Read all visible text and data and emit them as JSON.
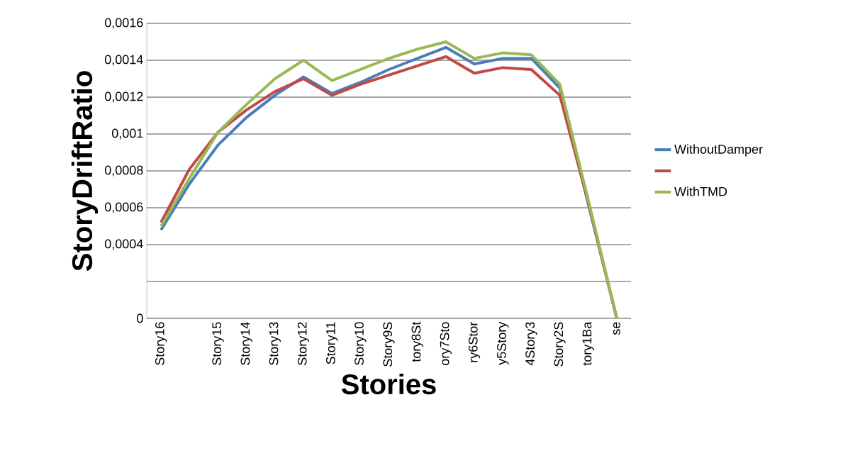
{
  "chart_data": {
    "type": "line",
    "xlabel": "Stories",
    "ylabel": "StoryDriftRatio",
    "categories": [
      "Story16",
      null,
      "Story15",
      "Story14",
      "Story13",
      "Story12",
      "Story11",
      "Story10",
      "Story9S",
      "tory8St",
      "ory7Sto",
      "ry6Stor",
      "y5Story",
      "4Story3",
      "Story2S",
      "tory1Ba",
      "se"
    ],
    "series": [
      {
        "name": "WithoutDamper",
        "color": "#4a7ebb",
        "values": [
          0.00048,
          0.00073,
          0.00094,
          0.00109,
          0.00121,
          0.00131,
          0.00122,
          0.00128,
          0.00135,
          0.00141,
          0.00147,
          0.00138,
          0.00141,
          0.00141,
          0.00125,
          0.00062,
          0
        ]
      },
      {
        "color": "#be4b48",
        "values": [
          0.00052,
          0.00081,
          0.00101,
          0.00113,
          0.00123,
          0.0013,
          0.00121,
          0.00127,
          0.00132,
          0.00137,
          0.00142,
          0.00133,
          0.00136,
          0.00135,
          0.00121,
          0.00063,
          0
        ]
      },
      {
        "name": "WithTMD",
        "color": "#98b954",
        "values": [
          0.0005,
          0.00076,
          0.00101,
          0.00116,
          0.0013,
          0.0014,
          0.00129,
          0.00135,
          0.00141,
          0.00146,
          0.0015,
          0.00141,
          0.00144,
          0.00143,
          0.00127,
          0.00064,
          0
        ]
      }
    ],
    "ylim": [
      0,
      0.0016
    ],
    "yticks": [
      0,
      {
        "value": 0.0002,
        "label": null
      },
      {
        "value": 0.0004,
        "label": "0,0004"
      },
      {
        "value": 0.0006,
        "label": "0,0006"
      },
      {
        "value": 0.0008,
        "label": "0,0008"
      },
      {
        "value": 0.001,
        "label": "0,001"
      },
      {
        "value": 0.0012,
        "label": "0,0012"
      },
      {
        "value": 0.0014,
        "label": "0,0014"
      },
      {
        "value": 0.0016,
        "label": "0,0016"
      }
    ],
    "grid": "y",
    "legend": "right",
    "marker": "none",
    "line_style": "solid"
  }
}
